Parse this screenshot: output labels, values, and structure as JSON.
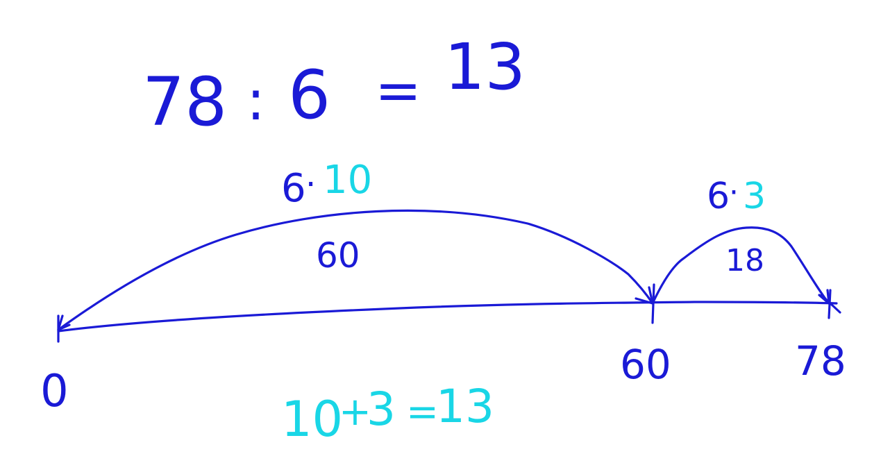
{
  "equation": {
    "dividend": "78",
    "operator": ":",
    "divisor": "6",
    "equals": "=",
    "quotient": "13"
  },
  "jumps": [
    {
      "factor": "6",
      "dot": "·",
      "multiplier": "10",
      "product": "60"
    },
    {
      "factor": "6",
      "dot": "·",
      "multiplier": "3",
      "product": "18"
    }
  ],
  "number_line": {
    "ticks": [
      {
        "value": 0,
        "label": "0"
      },
      {
        "value": 60,
        "label": "60"
      },
      {
        "value": 78,
        "label": "78"
      }
    ]
  },
  "sum": {
    "a": "10",
    "plus": "+",
    "b": "3",
    "equals": "=",
    "result": "13"
  },
  "colors": {
    "ink": "#1a1ad6",
    "highlight": "#19d6e6",
    "background": "#ffffff"
  }
}
